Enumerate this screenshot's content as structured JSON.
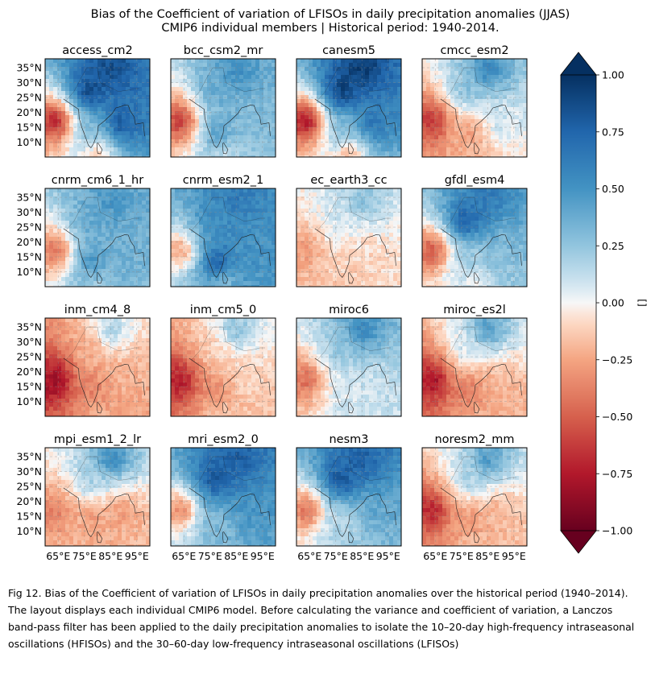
{
  "chart_data": {
    "type": "heatmap",
    "title": "Bias of the Coefficient of variation of LFISOs in daily precipitation anomalies (JJAS)",
    "subtitle": "CMIP6 individual members | Historical period: 1940-2014.",
    "panels": [
      {
        "name": "access_cm2",
        "bias": {
          "arabian_sea": -0.8,
          "north_india": 0.95,
          "bay_of_bengal": 0.85,
          "tibet": 0.9,
          "south_india": 0.3,
          "ocean_south": -0.2
        }
      },
      {
        "name": "bcc_csm2_mr",
        "bias": {
          "arabian_sea": -0.7,
          "north_india": 0.4,
          "bay_of_bengal": 0.3,
          "tibet": 0.55,
          "south_india": 0.5,
          "ocean_south": 0.1
        }
      },
      {
        "name": "canesm5",
        "bias": {
          "arabian_sea": -0.85,
          "north_india": 1.0,
          "bay_of_bengal": 0.7,
          "tibet": 1.0,
          "south_india": 0.3,
          "ocean_south": -0.25
        }
      },
      {
        "name": "cmcc_esm2",
        "bias": {
          "arabian_sea": -0.7,
          "north_india": 0.3,
          "bay_of_bengal": 0.1,
          "tibet": 0.6,
          "south_india": -0.3,
          "ocean_south": -0.2
        }
      },
      {
        "name": "cnrm_cm6_1_hr",
        "bias": {
          "arabian_sea": -0.5,
          "north_india": 0.4,
          "bay_of_bengal": 0.35,
          "tibet": 0.5,
          "south_india": 0.55,
          "ocean_south": 0.2
        }
      },
      {
        "name": "cnrm_esm2_1",
        "bias": {
          "arabian_sea": -0.3,
          "north_india": 0.55,
          "bay_of_bengal": 0.5,
          "tibet": 0.65,
          "south_india": 0.85,
          "ocean_south": 0.25
        }
      },
      {
        "name": "ec_earth3_cc",
        "bias": {
          "arabian_sea": -0.3,
          "north_india": 0.1,
          "bay_of_bengal": -0.1,
          "tibet": 0.3,
          "south_india": -0.1,
          "ocean_south": -0.15
        }
      },
      {
        "name": "gfdl_esm4",
        "bias": {
          "arabian_sea": -0.6,
          "north_india": 0.85,
          "bay_of_bengal": 0.3,
          "tibet": 0.65,
          "south_india": 0.2,
          "ocean_south": 0.0
        }
      },
      {
        "name": "inm_cm4_8",
        "bias": {
          "arabian_sea": -0.9,
          "north_india": -0.2,
          "bay_of_bengal": -0.2,
          "tibet": 0.2,
          "south_india": -0.4,
          "ocean_south": -0.2
        }
      },
      {
        "name": "inm_cm5_0",
        "bias": {
          "arabian_sea": -0.8,
          "north_india": -0.1,
          "bay_of_bengal": -0.1,
          "tibet": 0.3,
          "south_india": -0.35,
          "ocean_south": -0.1
        }
      },
      {
        "name": "miroc6",
        "bias": {
          "arabian_sea": -0.5,
          "north_india": 0.25,
          "bay_of_bengal": 0.1,
          "tibet": 0.6,
          "south_india": 0.05,
          "ocean_south": 0.1
        }
      },
      {
        "name": "miroc_es2l",
        "bias": {
          "arabian_sea": -0.85,
          "north_india": 0.1,
          "bay_of_bengal": -0.2,
          "tibet": 0.5,
          "south_india": -0.45,
          "ocean_south": -0.2
        }
      },
      {
        "name": "mpi_esm1_2_lr",
        "bias": {
          "arabian_sea": -0.4,
          "north_india": 0.2,
          "bay_of_bengal": -0.3,
          "tibet": 0.6,
          "south_india": -0.3,
          "ocean_south": -0.2
        }
      },
      {
        "name": "mri_esm2_0",
        "bias": {
          "arabian_sea": -0.4,
          "north_india": 0.9,
          "bay_of_bengal": 0.5,
          "tibet": 0.8,
          "south_india": 0.3,
          "ocean_south": 0.3
        }
      },
      {
        "name": "nesm3",
        "bias": {
          "arabian_sea": -0.5,
          "north_india": 0.9,
          "bay_of_bengal": 0.4,
          "tibet": 0.8,
          "south_india": 0.1,
          "ocean_south": 0.2
        }
      },
      {
        "name": "noresm2_mm",
        "bias": {
          "arabian_sea": -0.75,
          "north_india": 0.2,
          "bay_of_bengal": -0.2,
          "tibet": 0.5,
          "south_india": -0.35,
          "ocean_south": -0.15
        }
      }
    ],
    "lat_ticks": [
      "35°N",
      "30°N",
      "25°N",
      "20°N",
      "15°N",
      "10°N"
    ],
    "lon_ticks": [
      "65°E",
      "75°E",
      "85°E",
      "95°E"
    ],
    "extent": {
      "lon": [
        60,
        100
      ],
      "lat": [
        5,
        38
      ]
    },
    "colorbar": {
      "colormap": "RdBu",
      "range": [
        -1.0,
        1.0
      ],
      "ticks": [
        "1.00",
        "0.75",
        "0.50",
        "0.25",
        "0.00",
        "−0.25",
        "−0.50",
        "−0.75",
        "−1.00"
      ],
      "label": "[]",
      "extend": "both"
    },
    "grid": true
  },
  "caption": "Fig 12. Bias of the Coefficient of variation of LFISOs in daily precipitation anomalies over the historical period (1940–2014). The layout displays each individual CMIP6 model. Before calculating the variance and coefficient of variation, a Lanczos band-pass filter has been applied to the daily precipitation anomalies to isolate the 10–20-day high-frequency intraseasonal oscillations (HFISOs) and the 30–60-day low-frequency intraseasonal oscillations (LFISOs)"
}
